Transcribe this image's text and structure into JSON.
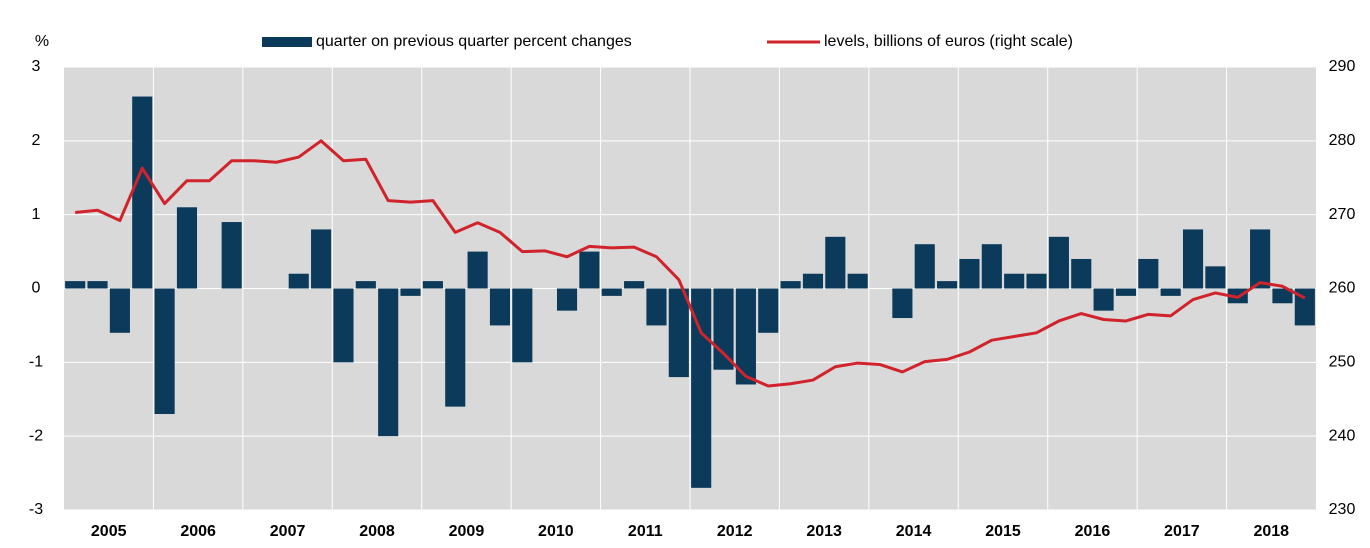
{
  "chart_data": {
    "type": "bar-line",
    "y_unit_label": "%",
    "categories": [
      "2005",
      null,
      null,
      null,
      "2006",
      null,
      null,
      null,
      "2007",
      null,
      null,
      null,
      "2008",
      null,
      null,
      null,
      "2009",
      null,
      null,
      null,
      "2010",
      null,
      null,
      null,
      "2011",
      null,
      null,
      null,
      "2012",
      null,
      null,
      null,
      "2013",
      null,
      null,
      null,
      "2014",
      null,
      null,
      null,
      "2015",
      null,
      null,
      null,
      "2016",
      null,
      null,
      null,
      "2017",
      null,
      null,
      null,
      "2018",
      null,
      null,
      null
    ],
    "series": [
      {
        "name": "quarter on previous quarter percent changes",
        "type": "bar",
        "color": "#0b3a5a",
        "values": [
          0.1,
          0.1,
          -0.6,
          2.6,
          -1.7,
          1.1,
          0.0,
          0.9,
          0.0,
          0.0,
          0.2,
          0.8,
          -1.0,
          0.1,
          -2.0,
          -0.1,
          0.1,
          -1.6,
          0.5,
          -0.5,
          -1.0,
          0.0,
          -0.3,
          0.5,
          -0.1,
          0.1,
          -0.5,
          -1.2,
          -2.7,
          -1.1,
          -1.3,
          -0.6,
          0.1,
          0.2,
          0.7,
          0.2,
          0.0,
          -0.4,
          0.6,
          0.1,
          0.4,
          0.6,
          0.2,
          0.2,
          0.7,
          0.4,
          -0.3,
          -0.1,
          0.4,
          -0.1,
          0.8,
          0.3,
          -0.2,
          0.8,
          -0.2,
          -0.5
        ]
      },
      {
        "name": "levels, billions of euros (right scale)",
        "type": "line",
        "axis": "y2",
        "color": "#d0232b",
        "values": [
          270.3,
          270.6,
          269.2,
          276.3,
          271.5,
          274.6,
          274.6,
          277.3,
          277.3,
          277.1,
          277.8,
          280.0,
          277.3,
          277.5,
          271.9,
          271.7,
          271.9,
          267.6,
          268.9,
          267.6,
          265.0,
          265.1,
          264.3,
          265.7,
          265.5,
          265.6,
          264.3,
          261.2,
          254.0,
          251.2,
          248.1,
          246.8,
          247.1,
          247.6,
          249.4,
          249.9,
          249.7,
          248.7,
          250.1,
          250.4,
          251.4,
          253.0,
          253.5,
          254.0,
          255.6,
          256.6,
          255.8,
          255.6,
          256.5,
          256.3,
          258.5,
          259.4,
          258.8,
          260.8,
          260.3,
          258.7
        ]
      }
    ],
    "ylim": [
      -3,
      3
    ],
    "yticks": [
      -3,
      -2,
      -1,
      0,
      1,
      2,
      3
    ],
    "y2lim": [
      230,
      290
    ],
    "y2ticks": [
      230,
      240,
      250,
      260,
      270,
      280,
      290
    ],
    "grid": true,
    "legend": "top"
  }
}
